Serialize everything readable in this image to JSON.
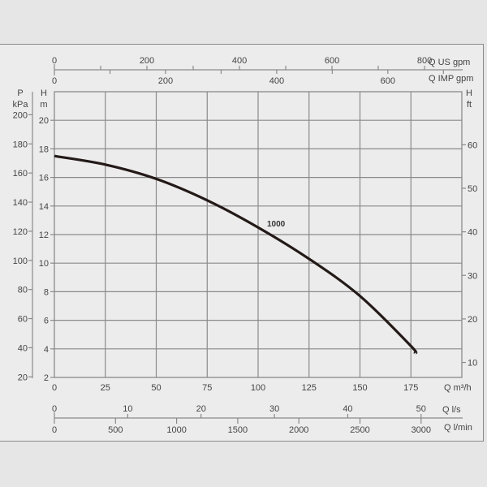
{
  "chart_data": {
    "type": "line",
    "title": "",
    "series": [
      {
        "name": "1000",
        "x": [
          0,
          25,
          50,
          75,
          100,
          125,
          150,
          175,
          177
        ],
        "values": [
          17.5,
          16.9,
          15.9,
          14.4,
          12.5,
          10.3,
          7.7,
          4.2,
          3.7
        ]
      }
    ],
    "xlabel": "Q m³/h",
    "ylabel": "H m",
    "xlim": [
      0,
      200
    ],
    "ylim": [
      2,
      22
    ],
    "grid": true,
    "x_ticks": [
      0,
      25,
      50,
      75,
      100,
      125,
      150,
      175
    ],
    "y_ticks": [
      2,
      4,
      6,
      8,
      10,
      12,
      14,
      16,
      18,
      20
    ],
    "secondary_axes": {
      "left_pressure": {
        "label_top": "P",
        "label_unit": "kPa",
        "ticks": [
          20,
          40,
          60,
          80,
          100,
          120,
          140,
          160,
          180,
          200
        ]
      },
      "right_head_ft": {
        "label_top": "H",
        "label_unit": "ft",
        "ticks": [
          10,
          20,
          30,
          40,
          50,
          60
        ]
      },
      "top_us_gpm": {
        "label": "Q US gpm",
        "labeled_ticks": [
          0,
          200,
          400,
          600,
          800
        ]
      },
      "top_imp_gpm": {
        "label": "Q IMP gpm",
        "labeled_ticks": [
          0,
          200,
          400,
          600
        ]
      },
      "bottom_ls": {
        "label": "Q l/s",
        "labeled_ticks": [
          0,
          10,
          20,
          30,
          40,
          50
        ]
      },
      "bottom_lmin": {
        "label": "Q l/min",
        "labeled_ticks": [
          0,
          500,
          1000,
          1500,
          2000,
          2500,
          3000
        ]
      }
    },
    "annotations": [
      "1000"
    ],
    "legend_position": "none"
  },
  "labels": {
    "p": "P",
    "kpa": "kPa",
    "h_left": "H",
    "m": "m",
    "h_right": "H",
    "ft": "ft",
    "q_m3h": "Q m³/h",
    "q_us_gpm": "Q US gpm",
    "q_imp_gpm": "Q IMP gpm",
    "q_ls": "Q l/s",
    "q_lmin": "Q l/min",
    "curve": "1000"
  },
  "colors": {
    "grid": "#8a8a8a",
    "curve": "#231a18",
    "text": "#444444",
    "plot_bg": "#ececec",
    "page_bg": "#e6e6e6"
  }
}
